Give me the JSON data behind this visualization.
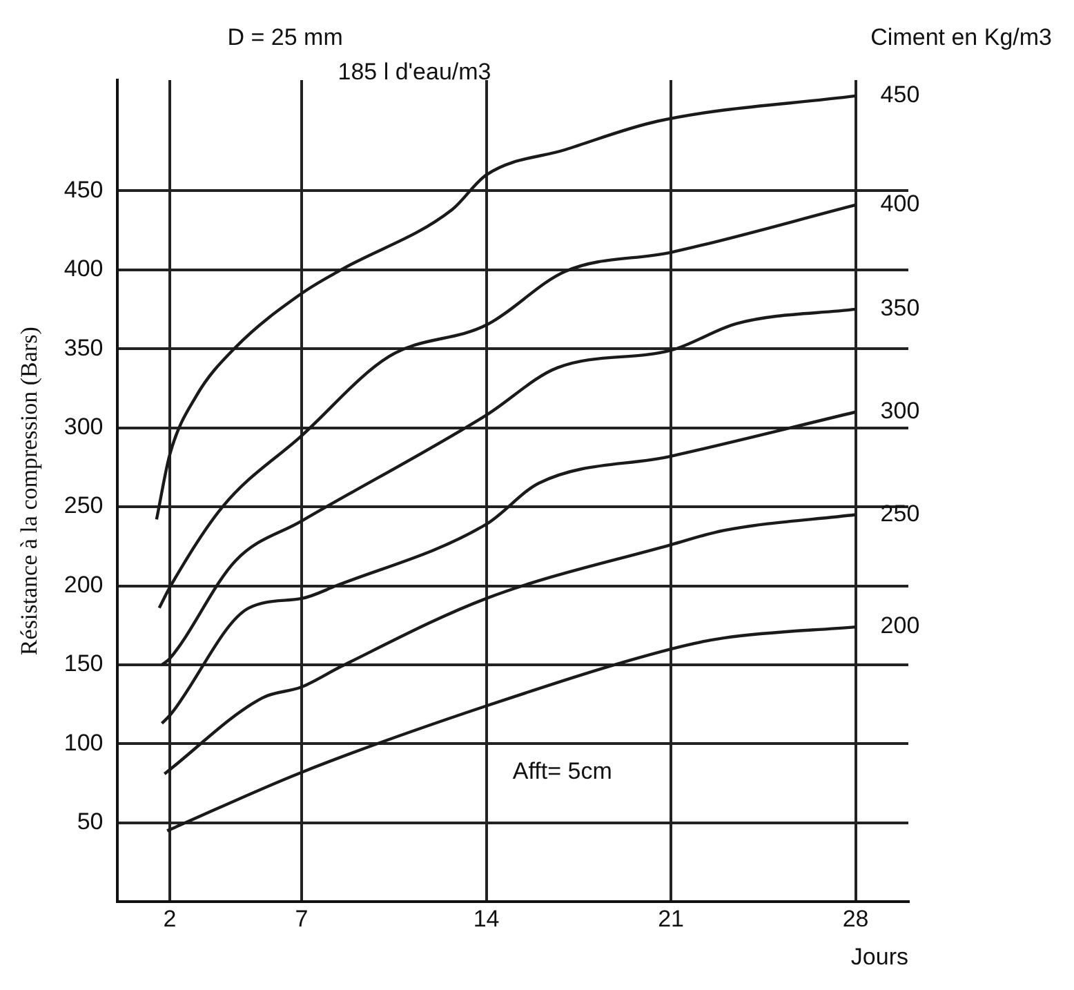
{
  "chart_data": {
    "type": "line",
    "ylabel": "Résistance à la compression (Bars)",
    "xlabel": "Jours",
    "legend_title": "Ciment en Kg/m3",
    "annotations": [
      "D = 25 mm",
      "185 l d'eau/m3",
      "Afft= 5cm"
    ],
    "xlim": [
      0,
      30
    ],
    "xticks": [
      2,
      7,
      14,
      21,
      28
    ],
    "ylim": [
      0,
      520
    ],
    "yticks": [
      50,
      100,
      150,
      200,
      250,
      300,
      350,
      400,
      450
    ],
    "grid": true,
    "legend": false,
    "marker": "none",
    "line_style": "solid",
    "series": [
      {
        "name": "450",
        "color": "#1a1a1a",
        "x": [
          1.5,
          2,
          3,
          4.5,
          7,
          8.5,
          12.7,
          14,
          17,
          20.5,
          28
        ],
        "values": [
          242,
          283,
          320,
          351,
          385,
          400,
          438,
          460,
          476,
          494,
          510
        ]
      },
      {
        "name": "400",
        "color": "#1a1a1a",
        "x": [
          1.6,
          2,
          4,
          7,
          10.3,
          14,
          17,
          21,
          28
        ],
        "values": [
          186,
          199,
          250,
          295,
          345,
          365,
          399,
          411,
          441
        ]
      },
      {
        "name": "350",
        "color": "#1a1a1a",
        "x": [
          1.7,
          2,
          4.5,
          7,
          14,
          16.7,
          21,
          23.5,
          28
        ],
        "values": [
          150,
          154,
          216,
          241,
          308,
          338,
          349,
          366,
          375
        ]
      },
      {
        "name": "300",
        "color": "#1a1a1a",
        "x": [
          1.7,
          2,
          5,
          7,
          8.3,
          14,
          16,
          21,
          28
        ],
        "values": [
          113,
          118,
          186,
          192,
          200,
          239,
          265,
          282,
          310
        ]
      },
      {
        "name": "250",
        "color": "#1a1a1a",
        "x": [
          1.8,
          5.5,
          7,
          8.5,
          14,
          21,
          23,
          28
        ],
        "values": [
          81,
          129,
          136,
          149,
          192,
          226,
          235,
          245
        ]
      },
      {
        "name": "200",
        "color": "#1a1a1a",
        "x": [
          1.9,
          7,
          14,
          21,
          23,
          28
        ],
        "values": [
          45,
          82,
          124,
          160,
          167,
          174
        ]
      }
    ]
  }
}
